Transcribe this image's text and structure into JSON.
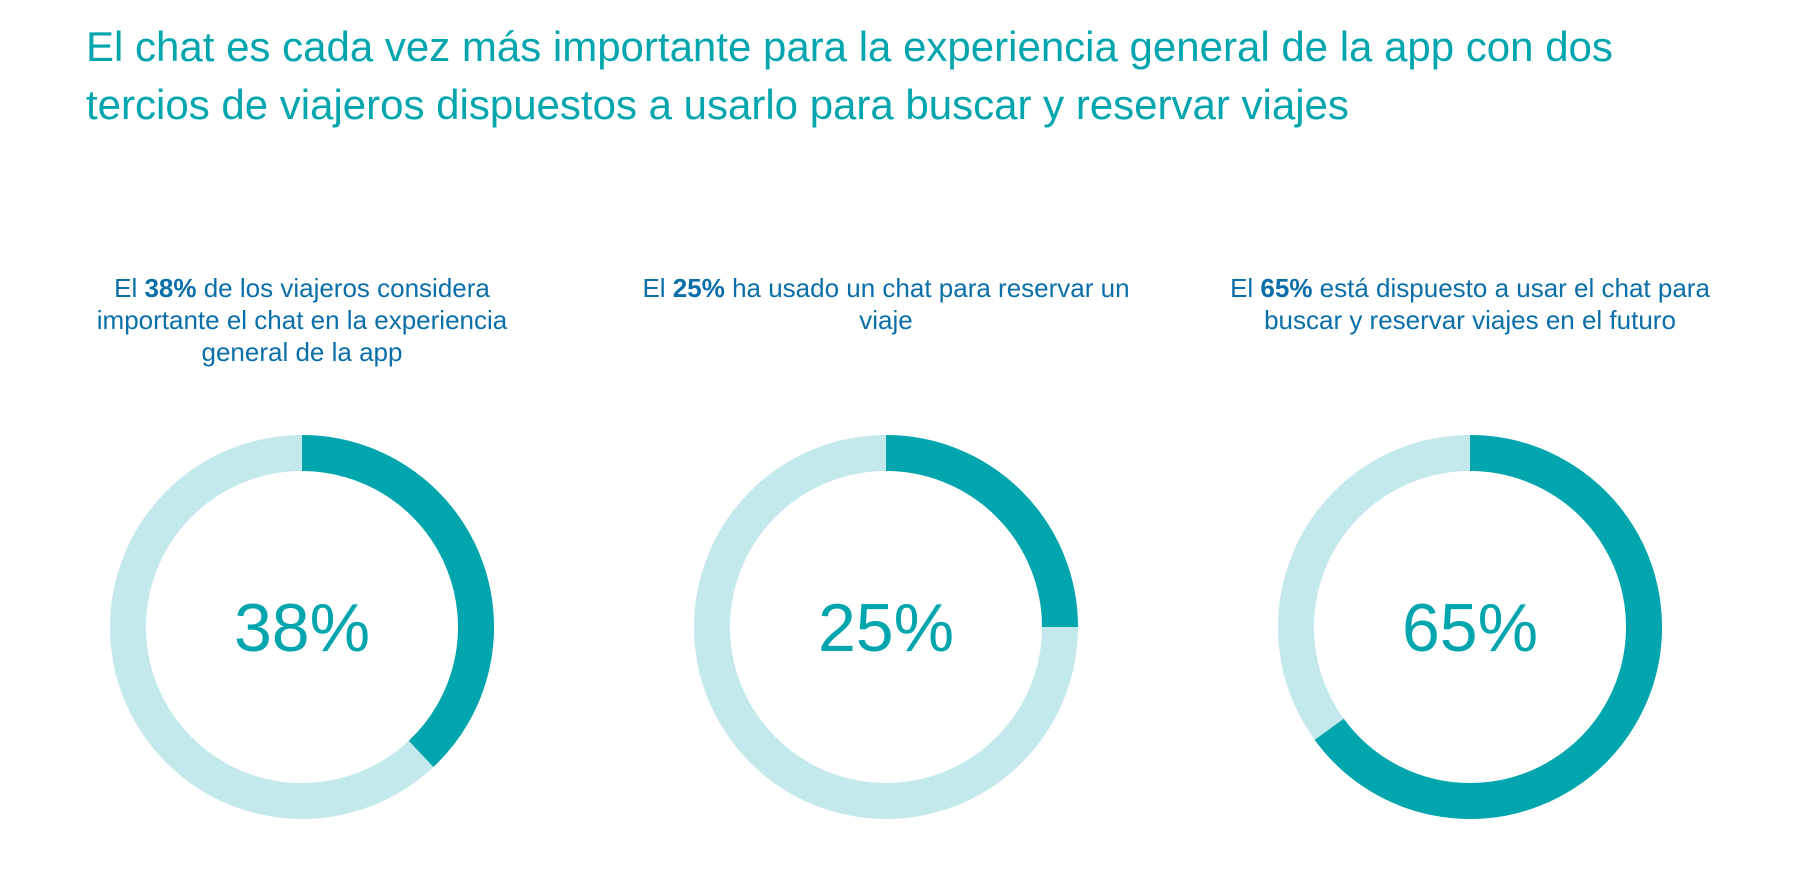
{
  "title": "El chat es cada vez más importante para la experiencia general de la app con dos tercios de viajeros dispuestos a usarlo para buscar y reservar viajes",
  "colors": {
    "accent": "#00a5ae",
    "track": "#c4e9ec",
    "caption": "#0a6fa8"
  },
  "chart_data": [
    {
      "type": "pie",
      "variant": "donut",
      "value": 38,
      "label": "38%",
      "caption": {
        "before": "El ",
        "highlight": "38%",
        "after": " de los viajeros considera importante el chat en la experiencia general de la app"
      }
    },
    {
      "type": "pie",
      "variant": "donut",
      "value": 25,
      "label": "25%",
      "caption": {
        "before": "El ",
        "highlight": "25%",
        "after": " ha usado un chat para reservar un viaje"
      }
    },
    {
      "type": "pie",
      "variant": "donut",
      "value": 65,
      "label": "65%",
      "caption": {
        "before": "El ",
        "highlight": "65%",
        "after": " está dispuesto a usar el chat para buscar y reservar viajes en el futuro"
      }
    }
  ]
}
